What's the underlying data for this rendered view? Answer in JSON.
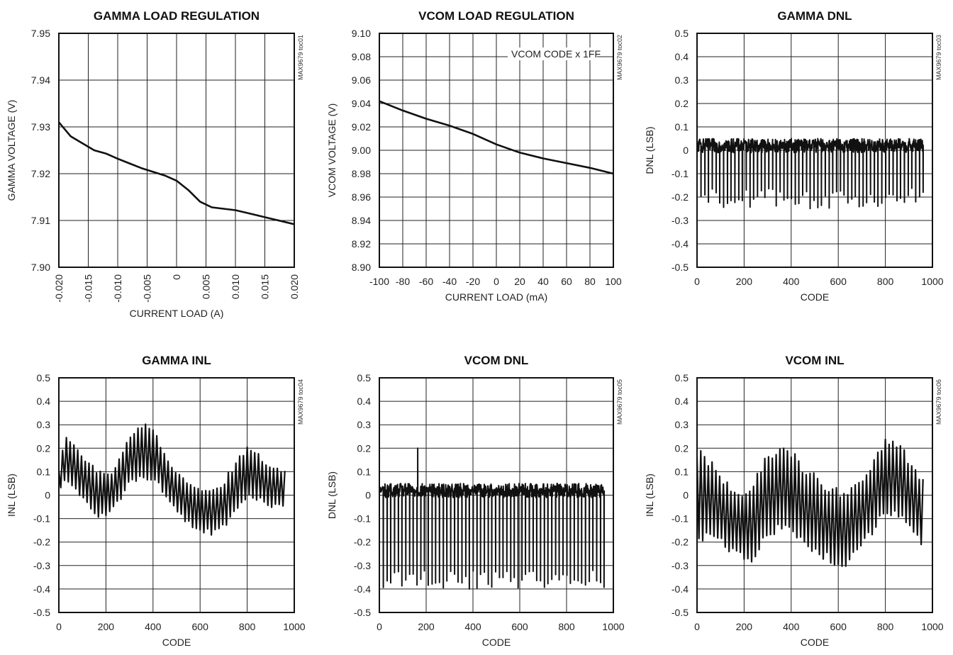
{
  "chart_data": [
    {
      "id": "toc01",
      "type": "line",
      "title": "GAMMA LOAD REGULATION",
      "xlabel": "CURRENT LOAD (A)",
      "ylabel": "GAMMA VOLTAGE (V)",
      "watermark": "MAX9679 toc01",
      "xlim": [
        -0.02,
        0.02
      ],
      "ylim": [
        7.9,
        7.95
      ],
      "x_ticks": [
        "-0.020",
        "-0.015",
        "-0.010",
        "-0.005",
        "0",
        "0.005",
        "0.010",
        "0.015",
        "0.020"
      ],
      "y_ticks": [
        "7.90",
        "7.91",
        "7.92",
        "7.93",
        "7.94",
        "7.95"
      ],
      "x_tick_rotation": "vertical",
      "grid": true,
      "series": [
        {
          "x": [
            -0.02,
            -0.018,
            -0.016,
            -0.014,
            -0.012,
            -0.01,
            -0.008,
            -0.006,
            -0.004,
            -0.002,
            0.0,
            0.002,
            0.004,
            0.006,
            0.008,
            0.01,
            0.012,
            0.014,
            0.016,
            0.018,
            0.02
          ],
          "y": [
            7.931,
            7.928,
            7.9265,
            7.925,
            7.9243,
            7.9232,
            7.9222,
            7.9212,
            7.9204,
            7.9196,
            7.9185,
            7.9165,
            7.914,
            7.9128,
            7.9125,
            7.9122,
            7.9116,
            7.911,
            7.9104,
            7.9098,
            7.9092
          ]
        }
      ]
    },
    {
      "id": "toc02",
      "type": "line",
      "title": "VCOM LOAD REGULATION",
      "xlabel": "CURRENT LOAD (mA)",
      "ylabel": "VCOM VOLTAGE (V)",
      "watermark": "MAX9679 toc02",
      "annotation": "VCOM CODE x 1FF",
      "xlim": [
        -100,
        100
      ],
      "ylim": [
        8.9,
        9.1
      ],
      "x_ticks": [
        "-100",
        "-80",
        "-60",
        "-40",
        "-20",
        "0",
        "20",
        "40",
        "60",
        "80",
        "100"
      ],
      "y_ticks": [
        "8.90",
        "8.92",
        "8.94",
        "8.96",
        "8.98",
        "9.00",
        "9.02",
        "9.04",
        "9.06",
        "9.08",
        "9.10"
      ],
      "grid": true,
      "series": [
        {
          "x": [
            -100,
            -80,
            -60,
            -40,
            -20,
            0,
            20,
            40,
            60,
            80,
            100
          ],
          "y": [
            9.042,
            9.034,
            9.027,
            9.021,
            9.014,
            9.005,
            8.998,
            8.993,
            8.989,
            8.985,
            8.98
          ]
        }
      ]
    },
    {
      "id": "toc03",
      "type": "line",
      "title": "GAMMA DNL",
      "xlabel": "CODE",
      "ylabel": "DNL (LSB)",
      "watermark": "MAX9679 toc03",
      "xlim": [
        0,
        1000
      ],
      "ylim": [
        -0.5,
        0.5
      ],
      "x_ticks": [
        "0",
        "200",
        "400",
        "600",
        "800",
        "1000"
      ],
      "y_ticks": [
        "-0.5",
        "-0.4",
        "-0.3",
        "-0.2",
        "-0.1",
        "0",
        "0.1",
        "0.2",
        "0.3",
        "0.4",
        "0.5"
      ],
      "grid": true,
      "series": [
        {
          "style": "dense-noise",
          "x_range": [
            0,
            960
          ],
          "baseline": 0.02,
          "noise_amplitude": 0.03,
          "spike_period": 16,
          "spike_min": -0.25,
          "spike_max": -0.16,
          "peak_max": 0.07
        }
      ]
    },
    {
      "id": "toc04",
      "type": "line",
      "title": "GAMMA INL",
      "xlabel": "CODE",
      "ylabel": "INL (LSB)",
      "watermark": "MAX9679 toc04",
      "xlim": [
        0,
        1000
      ],
      "ylim": [
        -0.5,
        0.5
      ],
      "x_ticks": [
        "0",
        "200",
        "400",
        "600",
        "800",
        "1000"
      ],
      "y_ticks": [
        "-0.5",
        "-0.4",
        "-0.3",
        "-0.2",
        "-0.1",
        "0",
        "0.1",
        "0.2",
        "0.3",
        "0.4",
        "0.5"
      ],
      "grid": true,
      "series": [
        {
          "style": "oscillating-envelope",
          "x_range": [
            0,
            960
          ],
          "period": 16,
          "envelope_x": [
            0,
            30,
            100,
            170,
            230,
            300,
            360,
            410,
            470,
            530,
            600,
            650,
            700,
            760,
            800,
            850,
            900,
            960
          ],
          "envelope_center": [
            0.07,
            0.16,
            0.08,
            0.0,
            0.02,
            0.15,
            0.2,
            0.16,
            0.06,
            -0.02,
            -0.06,
            -0.07,
            -0.04,
            0.05,
            0.09,
            0.08,
            0.03,
            0.03
          ],
          "envelope_amplitude": [
            0.04,
            0.1,
            0.08,
            0.09,
            0.08,
            0.1,
            0.11,
            0.1,
            0.08,
            0.08,
            0.09,
            0.09,
            0.09,
            0.1,
            0.1,
            0.09,
            0.08,
            0.07
          ]
        }
      ]
    },
    {
      "id": "toc05",
      "type": "line",
      "title": "VCOM DNL",
      "xlabel": "CODE",
      "ylabel": "DNL (LSB)",
      "watermark": "MAX9679 toc05",
      "xlim": [
        0,
        1000
      ],
      "ylim": [
        -0.5,
        0.5
      ],
      "x_ticks": [
        "0",
        "200",
        "400",
        "600",
        "800",
        "1000"
      ],
      "y_ticks": [
        "-0.5",
        "-0.4",
        "-0.3",
        "-0.2",
        "-0.1",
        "0",
        "0.1",
        "0.2",
        "0.3",
        "0.4",
        "0.5"
      ],
      "grid": true,
      "series": [
        {
          "style": "dense-noise",
          "x_range": [
            0,
            960
          ],
          "baseline": 0.02,
          "noise_amplitude": 0.03,
          "spike_period": 16,
          "spike_min": -0.4,
          "spike_max": -0.32,
          "peak_max": 0.09,
          "outlier_x": 163,
          "outlier_y": 0.2
        }
      ]
    },
    {
      "id": "toc06",
      "type": "line",
      "title": "VCOM INL",
      "xlabel": "CODE",
      "ylabel": "INL (LSB)",
      "watermark": "MAX9679 toc06",
      "xlim": [
        0,
        1000
      ],
      "ylim": [
        -0.5,
        0.5
      ],
      "x_ticks": [
        "0",
        "200",
        "400",
        "600",
        "800",
        "1000"
      ],
      "y_ticks": [
        "-0.5",
        "-0.4",
        "-0.3",
        "-0.2",
        "-0.1",
        "0",
        "0.1",
        "0.2",
        "0.3",
        "0.4",
        "0.5"
      ],
      "grid": true,
      "series": [
        {
          "style": "oscillating-envelope",
          "x_range": [
            0,
            960
          ],
          "period": 16,
          "envelope_x": [
            0,
            60,
            120,
            180,
            230,
            290,
            350,
            400,
            450,
            500,
            560,
            620,
            680,
            740,
            800,
            860,
            920,
            960
          ],
          "envelope_center": [
            0.0,
            -0.02,
            -0.08,
            -0.13,
            -0.12,
            -0.02,
            0.04,
            0.02,
            -0.04,
            -0.08,
            -0.12,
            -0.14,
            -0.1,
            -0.02,
            0.08,
            0.06,
            -0.02,
            -0.07
          ],
          "envelope_amplitude": [
            0.18,
            0.15,
            0.13,
            0.13,
            0.15,
            0.16,
            0.17,
            0.16,
            0.15,
            0.15,
            0.15,
            0.15,
            0.15,
            0.14,
            0.15,
            0.15,
            0.14,
            0.13
          ]
        }
      ]
    }
  ]
}
